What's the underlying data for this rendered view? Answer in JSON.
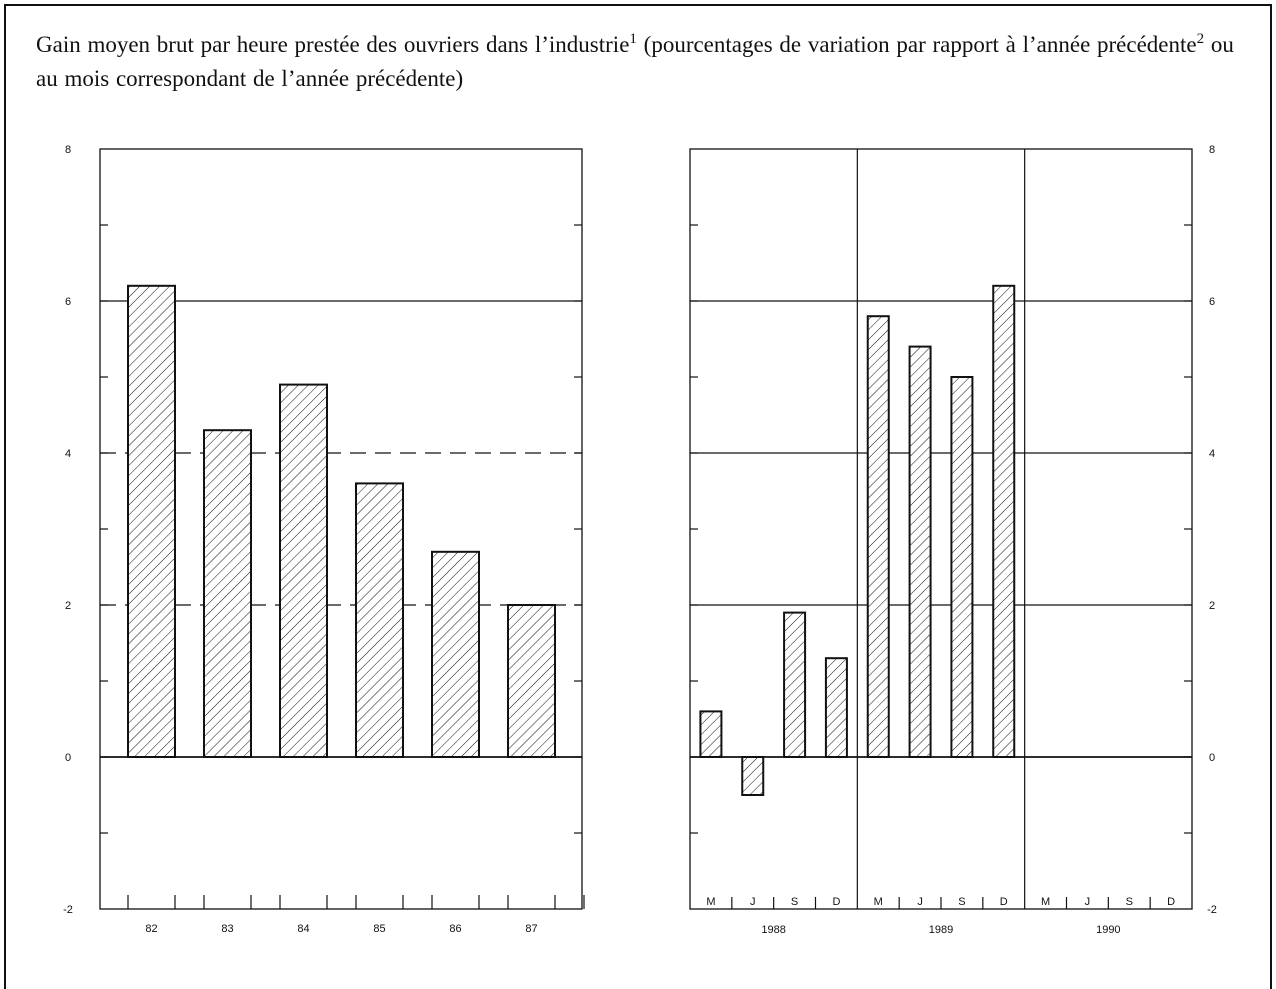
{
  "title": {
    "part1": "Gain moyen brut par heure prestée des ouvriers dans l’industrie",
    "sup1": "1",
    "part2": " (pourcentages de variation par rapport à l’année précédente",
    "sup2": "2",
    "part3": " ou au mois correspondant de l’année précédente)"
  },
  "colors": {
    "ink": "#111111",
    "background": "#ffffff"
  },
  "chart_data": [
    {
      "type": "bar",
      "categories": [
        "82",
        "83",
        "84",
        "85",
        "86",
        "87"
      ],
      "values": [
        6.2,
        4.3,
        4.9,
        3.6,
        2.7,
        2.0
      ],
      "ylim": [
        -2,
        8
      ],
      "yticks": [
        "8",
        "6",
        "4",
        "2",
        "0",
        "-2"
      ],
      "pattern": "diagonal-hatch",
      "grid": "horizontal lines at 2, 4 and 6 (dashed where behind bars)"
    },
    {
      "type": "bar",
      "groups": [
        {
          "year": "1988",
          "months": [
            "M",
            "J",
            "S",
            "D"
          ],
          "values": [
            0.6,
            -0.5,
            1.9,
            1.3
          ]
        },
        {
          "year": "1989",
          "months": [
            "M",
            "J",
            "S",
            "D"
          ],
          "values": [
            5.8,
            5.4,
            5.0,
            6.2
          ]
        },
        {
          "year": "1990",
          "months": [
            "M",
            "J",
            "S",
            "D"
          ],
          "values": [
            null,
            null,
            null,
            null
          ]
        }
      ],
      "ylim": [
        -2,
        8
      ],
      "yticks": [
        "8",
        "6",
        "4",
        "2",
        "0",
        "-2"
      ],
      "pattern": "diagonal-hatch",
      "grid": "horizontal lines at 2, 4 and 6"
    }
  ]
}
